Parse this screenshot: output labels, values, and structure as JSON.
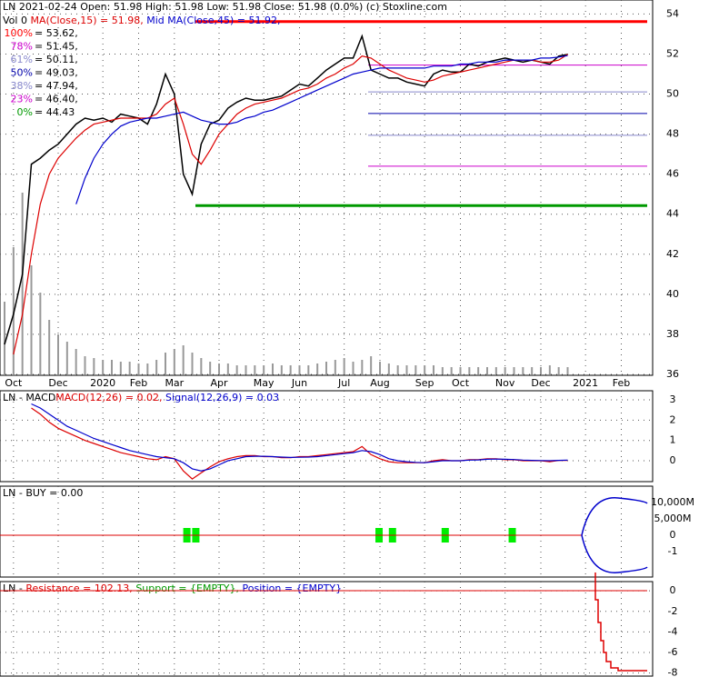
{
  "chart_data": {
    "type": "line",
    "header": "LN  2021-02-24 Open: 51.98  High: 51.98  Low: 51.98  Close: 51.98 (0.0%) (c) Stoxline.com",
    "vol_label": "Vol 0",
    "ma_labels": [
      "MA(Close,15) = 51.98,",
      "Mid MA(Close,45) = 51.92,"
    ],
    "x": [
      0,
      1,
      2,
      3,
      4,
      5,
      6,
      7,
      8,
      9,
      10,
      11,
      12,
      13,
      14,
      15,
      16,
      17,
      18,
      19,
      20,
      21,
      22,
      23,
      24,
      25,
      26,
      27,
      28,
      29,
      30,
      31,
      32,
      33,
      34,
      35,
      36,
      37,
      38,
      39,
      40,
      41,
      42,
      43,
      44,
      45,
      46,
      47,
      48,
      49,
      50,
      51,
      52,
      53,
      54,
      55,
      56,
      57,
      58,
      59,
      60,
      61,
      62,
      63
    ],
    "xlim": [
      0,
      72
    ],
    "xticks": [
      {
        "value": 1,
        "label": "Oct"
      },
      {
        "value": 6,
        "label": "Dec"
      },
      {
        "value": 11,
        "label": "2020"
      },
      {
        "value": 15,
        "label": "Feb"
      },
      {
        "value": 19,
        "label": "Mar"
      },
      {
        "value": 24,
        "label": "Apr"
      },
      {
        "value": 29,
        "label": "May"
      },
      {
        "value": 33,
        "label": "Jun"
      },
      {
        "value": 38,
        "label": "Jul"
      },
      {
        "value": 42,
        "label": "Aug"
      },
      {
        "value": 47,
        "label": "Sep"
      },
      {
        "value": 51,
        "label": "Oct"
      },
      {
        "value": 56,
        "label": "Nov"
      },
      {
        "value": 60,
        "label": "Dec"
      },
      {
        "value": 65,
        "label": "2021"
      },
      {
        "value": 69,
        "label": "Feb"
      }
    ],
    "ylim": [
      36,
      54.7
    ],
    "yticks": [
      36,
      38,
      40,
      42,
      44,
      46,
      48,
      50,
      52,
      54
    ],
    "grid": true,
    "series": [
      {
        "name": "Close",
        "color": "#000000",
        "values": [
          37.5,
          39,
          41,
          46.5,
          46.8,
          47.2,
          47.5,
          48,
          48.5,
          48.8,
          48.7,
          48.8,
          48.6,
          49,
          48.9,
          48.8,
          48.5,
          49.5,
          51,
          50,
          46,
          45,
          47.5,
          48.5,
          48.7,
          49.3,
          49.6,
          49.8,
          49.7,
          49.7,
          49.8,
          49.9,
          50.2,
          50.5,
          50.4,
          50.8,
          51.2,
          51.5,
          51.8,
          51.8,
          52.9,
          51.2,
          51,
          50.8,
          50.8,
          50.6,
          50.5,
          50.4,
          51,
          51.2,
          51.1,
          51.1,
          51.5,
          51.4,
          51.6,
          51.7,
          51.8,
          51.7,
          51.6,
          51.7,
          51.6,
          51.5,
          51.9,
          51.98
        ]
      },
      {
        "name": "MA(Close,15)",
        "color": "#dd0000",
        "values": [
          null,
          37,
          39,
          42,
          44.5,
          46,
          46.8,
          47.3,
          47.8,
          48.2,
          48.5,
          48.6,
          48.7,
          48.8,
          48.8,
          48.8,
          48.8,
          49,
          49.5,
          49.8,
          48.5,
          47,
          46.5,
          47.2,
          48,
          48.5,
          49,
          49.3,
          49.5,
          49.6,
          49.7,
          49.8,
          50,
          50.2,
          50.3,
          50.5,
          50.8,
          51,
          51.3,
          51.5,
          51.9,
          51.8,
          51.5,
          51.2,
          51,
          50.8,
          50.7,
          50.6,
          50.7,
          50.9,
          51,
          51.1,
          51.2,
          51.3,
          51.4,
          51.5,
          51.6,
          51.7,
          51.7,
          51.7,
          51.6,
          51.6,
          51.7,
          51.98
        ]
      },
      {
        "name": "MA(Close,45)",
        "color": "#0000cc",
        "values": [
          null,
          null,
          null,
          null,
          null,
          null,
          null,
          null,
          44.5,
          45.8,
          46.8,
          47.5,
          48,
          48.4,
          48.6,
          48.7,
          48.8,
          48.8,
          48.9,
          49,
          49.1,
          48.9,
          48.7,
          48.6,
          48.5,
          48.5,
          48.6,
          48.8,
          48.9,
          49.1,
          49.2,
          49.4,
          49.6,
          49.8,
          50,
          50.2,
          50.4,
          50.6,
          50.8,
          51,
          51.1,
          51.2,
          51.3,
          51.3,
          51.3,
          51.3,
          51.3,
          51.3,
          51.4,
          51.4,
          51.4,
          51.5,
          51.5,
          51.6,
          51.6,
          51.6,
          51.7,
          51.7,
          51.7,
          51.7,
          51.8,
          51.8,
          51.85,
          51.92
        ]
      }
    ],
    "volume": [
      40,
      70,
      100,
      60,
      45,
      30,
      22,
      18,
      14,
      10,
      9,
      8,
      8,
      7,
      7,
      6,
      6,
      8,
      12,
      14,
      16,
      12,
      9,
      7,
      6,
      6,
      5,
      5,
      5,
      5,
      6,
      5,
      5,
      5,
      5,
      6,
      7,
      8,
      9,
      7,
      8,
      10,
      7,
      6,
      5,
      5,
      5,
      5,
      5,
      4,
      4,
      4,
      4,
      4,
      4,
      4,
      4,
      4,
      4,
      4,
      4,
      5,
      4,
      4
    ],
    "fib": {
      "levels": [
        "100%",
        "78%",
        "61%",
        "50%",
        "38%",
        "23%",
        "0%"
      ],
      "values": [
        53.62,
        51.45,
        50.11,
        49.03,
        47.94,
        46.4,
        44.43
      ],
      "value_labels": [
        "= 53.62,",
        "= 51.45,",
        "= 50.11,",
        "= 49.03,",
        "= 47.94,",
        "= 46.40,",
        "= 44.43"
      ],
      "colors": [
        "#ff0000",
        "#cc00cc",
        "#8888cc",
        "#0000aa",
        "#8888cc",
        "#cc00cc",
        "#009900"
      ]
    },
    "macd": {
      "title": "LN - MACD",
      "labels": [
        "MACD(12,26) = 0.02,",
        "Signal(12,26,9) = 0.03"
      ],
      "ylim": [
        -1.03,
        3.45
      ],
      "yticks": [
        0,
        1,
        2,
        3
      ],
      "series": [
        {
          "name": "MACD",
          "color": "#dd0000",
          "values": [
            null,
            null,
            null,
            2.6,
            2.3,
            1.9,
            1.6,
            1.4,
            1.2,
            1.0,
            0.85,
            0.7,
            0.55,
            0.4,
            0.3,
            0.2,
            0.1,
            0.05,
            0.2,
            0.1,
            -0.5,
            -0.9,
            -0.6,
            -0.3,
            -0.05,
            0.1,
            0.2,
            0.25,
            0.25,
            0.2,
            0.2,
            0.15,
            0.15,
            0.2,
            0.2,
            0.25,
            0.3,
            0.35,
            0.4,
            0.45,
            0.7,
            0.3,
            0.1,
            -0.05,
            -0.1,
            -0.1,
            -0.1,
            -0.1,
            0,
            0.05,
            0,
            0,
            0.05,
            0.05,
            0.1,
            0.1,
            0.05,
            0.05,
            0,
            0,
            0,
            -0.05,
            0.02,
            0.02
          ]
        },
        {
          "name": "Signal",
          "color": "#0000cc",
          "values": [
            null,
            null,
            null,
            2.8,
            2.6,
            2.3,
            2.0,
            1.7,
            1.5,
            1.3,
            1.1,
            0.95,
            0.8,
            0.65,
            0.5,
            0.4,
            0.3,
            0.2,
            0.15,
            0.1,
            -0.1,
            -0.4,
            -0.5,
            -0.4,
            -0.2,
            0,
            0.1,
            0.2,
            0.22,
            0.22,
            0.2,
            0.18,
            0.16,
            0.17,
            0.18,
            0.2,
            0.25,
            0.3,
            0.35,
            0.4,
            0.5,
            0.45,
            0.3,
            0.1,
            0,
            -0.05,
            -0.08,
            -0.1,
            -0.05,
            0,
            0,
            0,
            0.03,
            0.04,
            0.07,
            0.08,
            0.07,
            0.06,
            0.03,
            0.02,
            0.01,
            0,
            0.02,
            0.03
          ]
        }
      ]
    },
    "buy": {
      "title": "LN - BUY = 0.00",
      "ytick_labels": [
        "10,000M",
        "5,000M",
        "0",
        "-1"
      ],
      "signals_x": [
        20.4,
        21.4,
        41.9,
        43.4,
        49.3,
        56.8
      ]
    },
    "resistance": {
      "title": "LN - ",
      "labels": [
        "Resistance = 102.13,",
        "Support = {EMPTY},",
        "Position = {EMPTY}"
      ],
      "ylim": [
        -8.3,
        0.9
      ],
      "yticks": [
        0,
        -2,
        -4,
        -6,
        -8
      ]
    }
  }
}
